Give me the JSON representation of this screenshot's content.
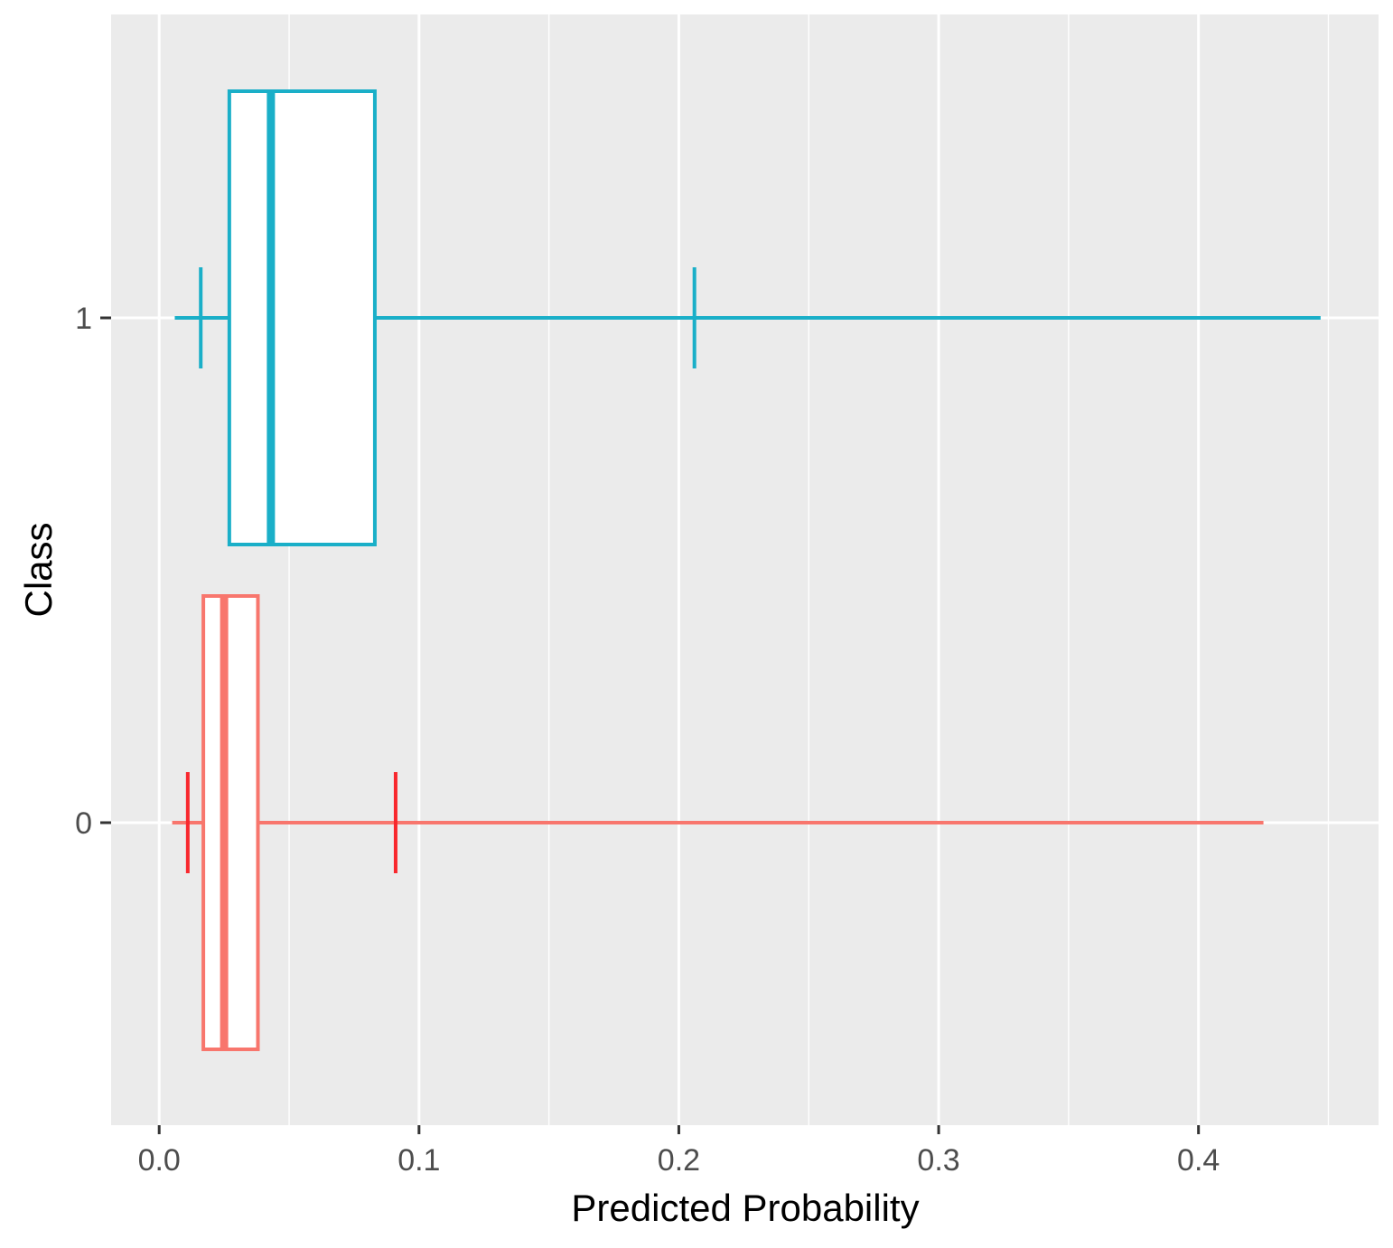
{
  "chart_data": {
    "type": "boxplot",
    "orientation": "horizontal",
    "xlabel": "Predicted Probability",
    "ylabel": "Class",
    "xlim": [
      -0.0185,
      0.4693
    ],
    "x_ticks": [
      {
        "value": 0.0,
        "label": "0.0"
      },
      {
        "value": 0.1,
        "label": "0.1"
      },
      {
        "value": 0.2,
        "label": "0.2"
      },
      {
        "value": 0.3,
        "label": "0.3"
      },
      {
        "value": 0.4,
        "label": "0.4"
      }
    ],
    "x_minor_gridlines": [
      0.05,
      0.15,
      0.25,
      0.35,
      0.45
    ],
    "categories": [
      "0",
      "1"
    ],
    "grid": true,
    "legend": "none",
    "background_color": "#EBEBEB",
    "grid_color": "#FFFFFF",
    "series": [
      {
        "category": "0",
        "color": "#F8766D",
        "marker_color": "#F8272D",
        "whisker_low": 0.005,
        "q1": 0.017,
        "median": 0.025,
        "q3": 0.038,
        "whisker_high": 0.425,
        "markers": [
          0.011,
          0.091
        ]
      },
      {
        "category": "1",
        "color": "#1AAFC8",
        "marker_color": "#1AAFC8",
        "whisker_low": 0.006,
        "q1": 0.027,
        "median": 0.043,
        "q3": 0.083,
        "whisker_high": 0.447,
        "markers": [
          0.016,
          0.206
        ]
      }
    ]
  }
}
